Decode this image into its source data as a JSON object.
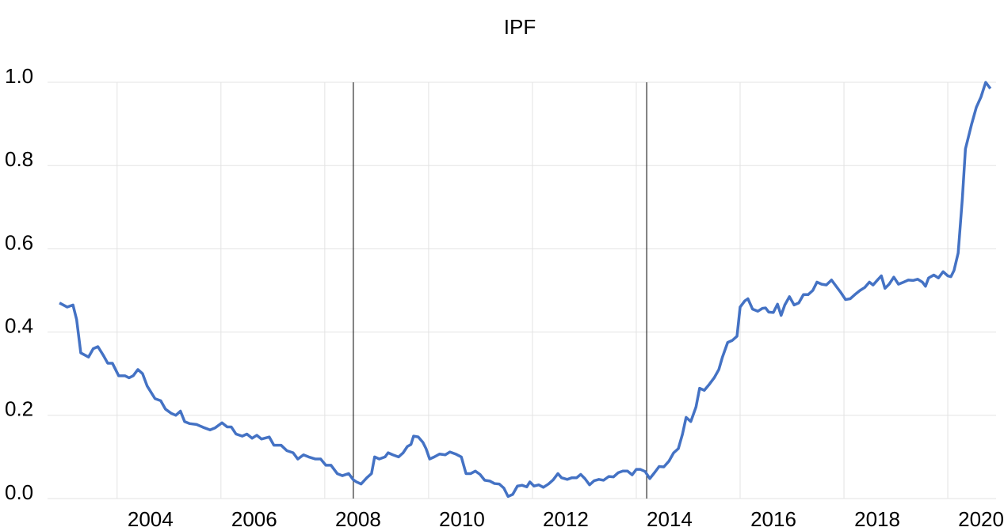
{
  "chart_data": {
    "type": "line",
    "title": "IPF",
    "x": [
      2002.89,
      2003.04,
      2003.15,
      2003.22,
      2003.3,
      2003.45,
      2003.54,
      2003.63,
      2003.73,
      2003.82,
      2003.91,
      2004.03,
      2004.15,
      2004.23,
      2004.31,
      2004.4,
      2004.49,
      2004.58,
      2004.73,
      2004.84,
      2004.93,
      2005.04,
      2005.13,
      2005.22,
      2005.3,
      2005.4,
      2005.53,
      2005.68,
      2005.79,
      2005.89,
      2006.02,
      2006.12,
      2006.2,
      2006.29,
      2006.41,
      2006.5,
      2006.6,
      2006.69,
      2006.78,
      2006.93,
      2007.02,
      2007.16,
      2007.27,
      2007.39,
      2007.48,
      2007.59,
      2007.69,
      2007.82,
      2007.92,
      2008.02,
      2008.12,
      2008.24,
      2008.34,
      2008.46,
      2008.55,
      2008.61,
      2008.7,
      2008.81,
      2008.9,
      2008.96,
      2009.05,
      2009.16,
      2009.22,
      2009.31,
      2009.42,
      2009.51,
      2009.59,
      2009.66,
      2009.71,
      2009.8,
      2009.89,
      2009.95,
      2010.02,
      2010.11,
      2010.21,
      2010.32,
      2010.41,
      2010.52,
      2010.63,
      2010.72,
      2010.81,
      2010.9,
      2010.99,
      2011.08,
      2011.18,
      2011.27,
      2011.36,
      2011.45,
      2011.53,
      2011.62,
      2011.71,
      2011.8,
      2011.89,
      2011.95,
      2012.03,
      2012.12,
      2012.21,
      2012.31,
      2012.4,
      2012.49,
      2012.56,
      2012.67,
      2012.76,
      2012.85,
      2012.93,
      2013.01,
      2013.1,
      2013.19,
      2013.28,
      2013.37,
      2013.47,
      2013.56,
      2013.65,
      2013.74,
      2013.83,
      2013.92,
      2014.0,
      2014.08,
      2014.17,
      2014.26,
      2014.35,
      2014.44,
      2014.53,
      2014.63,
      2014.72,
      2014.81,
      2014.89,
      2014.96,
      2015.05,
      2015.15,
      2015.22,
      2015.31,
      2015.41,
      2015.5,
      2015.59,
      2015.66,
      2015.76,
      2015.85,
      2015.94,
      2016.0,
      2016.09,
      2016.15,
      2016.24,
      2016.34,
      2016.43,
      2016.49,
      2016.55,
      2016.64,
      2016.72,
      2016.79,
      2016.86,
      2016.95,
      2017.04,
      2017.13,
      2017.22,
      2017.31,
      2017.4,
      2017.48,
      2017.57,
      2017.66,
      2017.76,
      2017.85,
      2017.94,
      2018.03,
      2018.12,
      2018.21,
      2018.31,
      2018.4,
      2018.49,
      2018.56,
      2018.66,
      2018.72,
      2018.79,
      2018.87,
      2018.96,
      2019.05,
      2019.15,
      2019.24,
      2019.33,
      2019.42,
      2019.51,
      2019.57,
      2019.63,
      2019.73,
      2019.82,
      2019.91,
      2020.0,
      2020.06,
      2020.12,
      2020.2,
      2020.28,
      2020.34,
      2020.4,
      2020.46,
      2020.55,
      2020.64,
      2020.73,
      2020.82
    ],
    "values": [
      0.47,
      0.46,
      0.465,
      0.43,
      0.35,
      0.34,
      0.36,
      0.365,
      0.345,
      0.325,
      0.325,
      0.295,
      0.295,
      0.29,
      0.295,
      0.31,
      0.3,
      0.27,
      0.24,
      0.235,
      0.215,
      0.205,
      0.2,
      0.21,
      0.185,
      0.18,
      0.178,
      0.17,
      0.165,
      0.17,
      0.182,
      0.172,
      0.172,
      0.155,
      0.15,
      0.155,
      0.145,
      0.152,
      0.143,
      0.148,
      0.128,
      0.128,
      0.115,
      0.11,
      0.095,
      0.105,
      0.1,
      0.095,
      0.095,
      0.08,
      0.08,
      0.06,
      0.055,
      0.06,
      0.045,
      0.04,
      0.035,
      0.05,
      0.06,
      0.1,
      0.095,
      0.1,
      0.11,
      0.105,
      0.1,
      0.11,
      0.125,
      0.13,
      0.15,
      0.148,
      0.135,
      0.12,
      0.095,
      0.1,
      0.107,
      0.105,
      0.112,
      0.107,
      0.1,
      0.06,
      0.06,
      0.066,
      0.058,
      0.044,
      0.042,
      0.036,
      0.035,
      0.025,
      0.005,
      0.01,
      0.03,
      0.032,
      0.028,
      0.04,
      0.03,
      0.033,
      0.027,
      0.035,
      0.045,
      0.06,
      0.05,
      0.046,
      0.05,
      0.05,
      0.058,
      0.048,
      0.033,
      0.043,
      0.046,
      0.044,
      0.053,
      0.052,
      0.062,
      0.066,
      0.066,
      0.057,
      0.07,
      0.07,
      0.065,
      0.048,
      0.062,
      0.077,
      0.076,
      0.09,
      0.11,
      0.12,
      0.155,
      0.195,
      0.185,
      0.22,
      0.265,
      0.26,
      0.275,
      0.29,
      0.31,
      0.34,
      0.375,
      0.38,
      0.39,
      0.46,
      0.475,
      0.48,
      0.455,
      0.45,
      0.457,
      0.458,
      0.448,
      0.447,
      0.467,
      0.44,
      0.465,
      0.485,
      0.465,
      0.47,
      0.49,
      0.49,
      0.5,
      0.52,
      0.515,
      0.513,
      0.525,
      0.51,
      0.495,
      0.478,
      0.48,
      0.49,
      0.5,
      0.507,
      0.52,
      0.513,
      0.527,
      0.535,
      0.505,
      0.515,
      0.532,
      0.515,
      0.52,
      0.525,
      0.524,
      0.527,
      0.52,
      0.51,
      0.53,
      0.537,
      0.53,
      0.545,
      0.535,
      0.533,
      0.548,
      0.59,
      0.72,
      0.84,
      0.87,
      0.9,
      0.94,
      0.965,
      1.0,
      0.985
    ],
    "color": "#4472c4",
    "reference_lines": [
      2008.55,
      2014.2
    ],
    "xlim": [
      2002.66,
      2020.93
    ],
    "xticks": [
      2004,
      2006,
      2008,
      2010,
      2012,
      2014,
      2016,
      2018,
      2020
    ],
    "ylim": [
      0,
      1
    ],
    "yticks": [
      {
        "value": 0,
        "label": "0.0"
      },
      0.2,
      0.4,
      0.6,
      0.8,
      {
        "value": 1,
        "label": "1.0"
      }
    ],
    "grid": true
  }
}
